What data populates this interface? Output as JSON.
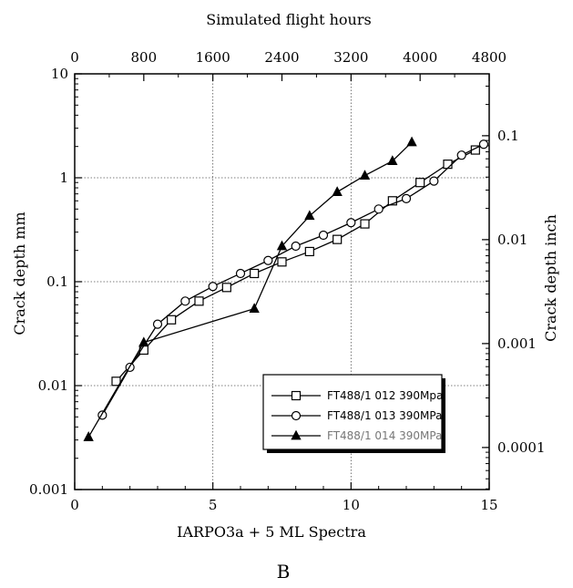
{
  "figure": {
    "panel_label": "B"
  },
  "chart_data": {
    "type": "line",
    "xlabel": "IARPO3a + 5 ML Spectra",
    "x2label": "Simulated flight hours",
    "ylabel": "Crack depth mm",
    "y2label": "Crack depth inch",
    "xlim": [
      0,
      15
    ],
    "x2lim": [
      0,
      4800
    ],
    "ylim": [
      0.001,
      10
    ],
    "y2lim": [
      3.94e-05,
      0.394
    ],
    "yscale": "log",
    "y2scale": "log",
    "grid": true,
    "legend_position": "lower-right",
    "x_ticks": [
      "0",
      "5",
      "10",
      "15"
    ],
    "x2_ticks": [
      "0",
      "800",
      "1600",
      "2400",
      "3200",
      "4000",
      "4800"
    ],
    "y_ticks": [
      "0.001",
      "0.01",
      "0.1",
      "1",
      "10"
    ],
    "y2_ticks": [
      "0.0001",
      "0.001",
      "0.01",
      "0.1"
    ],
    "series": [
      {
        "name": "FT488/1 012 390Mpa",
        "marker": "square",
        "color": "#000000",
        "x": [
          1.5,
          2.5,
          3.5,
          4.5,
          5.5,
          6.5,
          7.5,
          8.5,
          9.5,
          10.5,
          11.5,
          12.5,
          13.5,
          14.5
        ],
        "y": [
          0.011,
          0.022,
          0.043,
          0.065,
          0.088,
          0.12,
          0.155,
          0.195,
          0.255,
          0.36,
          0.6,
          0.9,
          1.35,
          1.85
        ]
      },
      {
        "name": "FT488/1 013 390MPa",
        "marker": "circle",
        "color": "#000000",
        "x": [
          1.0,
          2.0,
          3.0,
          4.0,
          5.0,
          6.0,
          7.0,
          8.0,
          9.0,
          10.0,
          11.0,
          12.0,
          13.0,
          14.0,
          14.8
        ],
        "y": [
          0.0052,
          0.015,
          0.039,
          0.065,
          0.09,
          0.12,
          0.16,
          0.22,
          0.28,
          0.37,
          0.5,
          0.63,
          0.93,
          1.65,
          2.1
        ]
      },
      {
        "name": "FT488/1 014 390MPa",
        "marker": "triangle",
        "color": "#000000",
        "x": [
          0.5,
          2.5,
          6.5,
          7.5,
          8.5,
          9.5,
          10.5,
          11.5,
          12.2
        ],
        "y": [
          0.0032,
          0.026,
          0.055,
          0.22,
          0.43,
          0.73,
          1.05,
          1.45,
          2.2
        ]
      }
    ]
  }
}
